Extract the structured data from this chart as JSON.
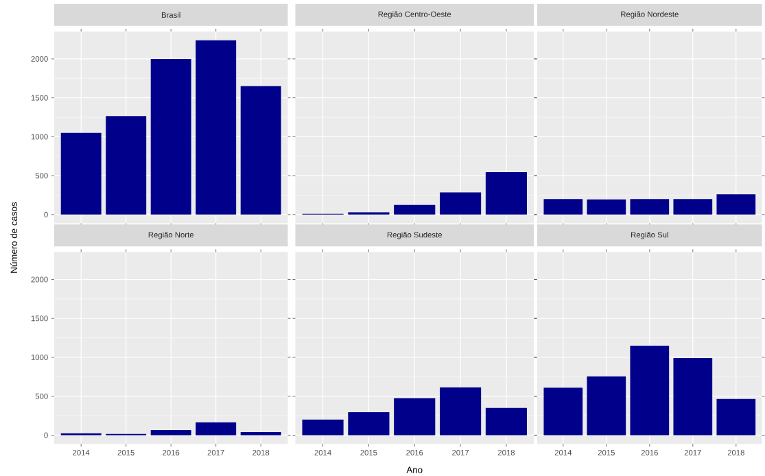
{
  "chart_data": [
    {
      "type": "bar",
      "title": "Brasil",
      "ylabel": "Número de casos",
      "categories": [
        "2014",
        "2015",
        "2016",
        "2017",
        "2018"
      ],
      "values": [
        1050,
        1265,
        2000,
        2240,
        1650
      ],
      "color": "#00008b",
      "ylim": [
        -112,
        2352
      ],
      "yticks": [
        0,
        500,
        1000,
        1500,
        2000
      ],
      "grid": true,
      "tick_labels": "y"
    },
    {
      "type": "bar",
      "title": "Região Centro-Oeste",
      "categories": [
        "2014",
        "2015",
        "2016",
        "2017",
        "2018"
      ],
      "values": [
        10,
        30,
        125,
        285,
        545
      ],
      "color": "#00008b",
      "ylim": [
        -112,
        2352
      ],
      "yticks": [
        0,
        500,
        1000,
        1500,
        2000
      ],
      "grid": true,
      "tick_labels": false
    },
    {
      "type": "bar",
      "title": "Região Nordeste",
      "categories": [
        "2014",
        "2015",
        "2016",
        "2017",
        "2018"
      ],
      "values": [
        200,
        195,
        200,
        200,
        260
      ],
      "color": "#00008b",
      "ylim": [
        -112,
        2352
      ],
      "yticks": [
        0,
        500,
        1000,
        1500,
        2000
      ],
      "grid": true,
      "tick_labels": false
    },
    {
      "type": "bar",
      "title": "Região Norte",
      "categories": [
        "2014",
        "2015",
        "2016",
        "2017",
        "2018"
      ],
      "values": [
        25,
        15,
        65,
        165,
        40
      ],
      "color": "#00008b",
      "ylim": [
        -112,
        2352
      ],
      "yticks": [
        0,
        500,
        1000,
        1500,
        2000
      ],
      "grid": true
    },
    {
      "type": "bar",
      "title": "Região Sudeste",
      "xlabel": "Ano",
      "categories": [
        "2014",
        "2015",
        "2016",
        "2017",
        "2018"
      ],
      "values": [
        200,
        295,
        475,
        615,
        350
      ],
      "color": "#00008b",
      "ylim": [
        -112,
        2352
      ],
      "yticks": [
        0,
        500,
        1000,
        1500,
        2000
      ],
      "grid": true,
      "tick_labels": "x"
    },
    {
      "type": "bar",
      "title": "Região Sul",
      "categories": [
        "2014",
        "2015",
        "2016",
        "2017",
        "2018"
      ],
      "values": [
        610,
        755,
        1150,
        990,
        465
      ],
      "color": "#00008b",
      "ylim": [
        -112,
        2352
      ],
      "yticks": [
        0,
        500,
        1000,
        1500,
        2000
      ],
      "grid": true,
      "tick_labels": "x"
    }
  ]
}
